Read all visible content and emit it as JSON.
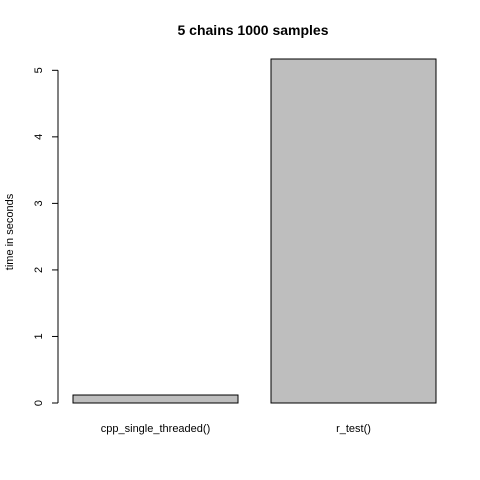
{
  "chart_data": {
    "type": "bar",
    "title": "5 chains 1000 samples",
    "xlabel": "",
    "ylabel": "time in seconds",
    "categories": [
      "cpp_single_threaded()",
      "r_test()"
    ],
    "values": [
      0.12,
      5.17
    ],
    "ylim": [
      0,
      5.17
    ],
    "yticks": [
      0,
      1,
      2,
      3,
      4,
      5
    ],
    "bar_color": "#bebebe",
    "bar_stroke": "#000000",
    "grid": false,
    "legend": "none"
  }
}
